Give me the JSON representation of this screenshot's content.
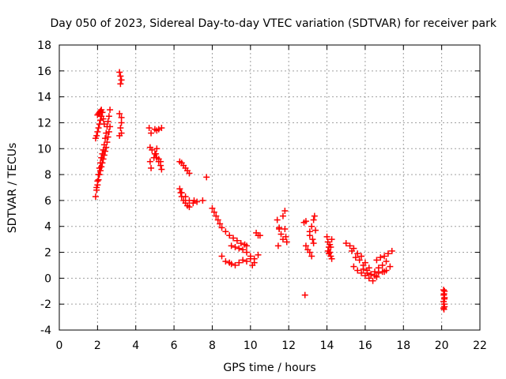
{
  "chart_data": {
    "type": "scatter",
    "title": "Day 050 of 2023, Sidereal Day-to-day VTEC variation (SDTVAR) for receiver park",
    "xlabel": "GPS time / hours",
    "ylabel": "SDTVAR / TECUs",
    "xlim": [
      0,
      22
    ],
    "ylim": [
      -4,
      18
    ],
    "xticks": [
      0,
      2,
      4,
      6,
      8,
      10,
      12,
      14,
      16,
      18,
      20,
      22
    ],
    "yticks": [
      -4,
      -2,
      0,
      2,
      4,
      6,
      8,
      10,
      12,
      14,
      16,
      18
    ],
    "xtick_labels": [
      "0",
      "2",
      "4",
      "6",
      "8",
      "10",
      "12",
      "14",
      "16",
      "18",
      "20",
      "22"
    ],
    "ytick_labels": [
      "-4",
      "-2",
      "0",
      "2",
      "4",
      "6",
      "8",
      "10",
      "12",
      "14",
      "16",
      "18"
    ],
    "grid": true,
    "marker": "+",
    "marker_color": "#ff0000",
    "series": [
      {
        "name": "SDTVAR",
        "x": [
          1.9,
          1.95,
          2.0,
          2.05,
          2.1,
          2.15,
          2.2,
          2.25,
          2.3,
          2.35,
          2.4,
          2.45,
          2.5,
          2.55,
          2.6,
          2.65,
          1.95,
          2.0,
          2.05,
          2.1,
          2.15,
          2.2,
          2.25,
          2.3,
          2.35,
          2.4,
          2.45,
          2.5,
          2.55,
          2.6,
          2.65,
          1.9,
          1.95,
          2.0,
          2.05,
          2.1,
          2.15,
          2.2,
          2.25,
          2.3,
          2.35,
          2.0,
          2.05,
          2.1,
          2.15,
          2.2,
          2.25,
          3.15,
          3.2,
          3.25,
          3.15,
          3.25,
          3.2,
          3.25,
          3.15,
          3.25,
          3.2,
          4.7,
          4.75,
          4.85,
          5.0,
          5.1,
          5.2,
          5.3,
          5.35,
          4.75,
          4.8,
          4.95,
          5.05,
          5.1,
          5.2,
          5.3,
          4.8,
          5.0,
          5.1,
          5.2,
          5.35,
          6.3,
          6.35,
          6.4,
          6.5,
          6.6,
          6.7,
          6.8,
          7.05,
          6.3,
          6.4,
          6.5,
          6.6,
          6.7,
          6.8,
          6.4,
          6.6,
          6.8,
          7.0,
          7.2,
          7.5,
          7.7,
          8.0,
          8.1,
          8.2,
          8.3,
          8.4,
          8.5,
          8.7,
          8.9,
          9.1,
          9.3,
          9.5,
          9.7,
          9.8,
          8.5,
          8.7,
          8.9,
          9.0,
          9.2,
          9.4,
          9.6,
          9.8,
          10.0,
          10.1,
          10.2,
          10.3,
          10.4,
          10.5,
          9.0,
          9.2,
          9.4,
          9.6,
          9.8,
          10.0,
          10.2,
          10.4,
          11.4,
          11.5,
          11.6,
          11.7,
          11.8,
          11.85,
          11.5,
          11.7,
          11.9,
          11.45,
          11.8,
          12.8,
          12.9,
          13.0,
          13.1,
          13.2,
          13.3,
          13.35,
          13.1,
          13.2,
          13.3,
          12.9,
          13.1,
          13.25,
          13.4,
          14.0,
          14.05,
          14.1,
          14.15,
          14.2,
          14.25,
          14.05,
          14.15,
          14.25,
          14.1,
          14.2,
          15.0,
          15.2,
          15.4,
          15.6,
          15.8,
          16.0,
          15.3,
          15.5,
          15.7,
          15.9,
          16.1,
          16.3,
          15.4,
          15.6,
          15.8,
          16.0,
          16.2,
          16.4,
          15.9,
          16.1,
          16.3,
          16.5,
          16.7,
          16.9,
          17.1,
          16.5,
          16.7,
          16.9,
          17.1,
          17.3,
          16.6,
          16.8,
          17.0,
          17.2,
          17.4,
          16.2,
          16.6,
          17.0,
          20.1,
          20.12,
          20.15,
          20.1,
          20.13,
          20.15,
          20.1,
          20.12,
          20.14,
          20.11,
          20.15
        ],
        "y": [
          6.3,
          6.8,
          7.2,
          7.6,
          8.0,
          8.3,
          8.6,
          8.9,
          9.2,
          9.5,
          9.8,
          10.1,
          10.5,
          10.9,
          11.3,
          11.7,
          7.0,
          7.5,
          8.0,
          8.5,
          8.9,
          9.3,
          9.6,
          9.9,
          10.3,
          10.8,
          11.2,
          11.7,
          12.1,
          12.5,
          13.0,
          10.8,
          11.0,
          11.3,
          11.6,
          11.9,
          12.2,
          12.5,
          12.8,
          12.3,
          11.9,
          12.6,
          12.7,
          12.8,
          12.9,
          13.0,
          12.8,
          15.9,
          15.6,
          15.3,
          12.7,
          12.4,
          11.6,
          11.2,
          11.0,
          12.0,
          15.0,
          11.6,
          10.1,
          9.9,
          9.6,
          9.3,
          9.0,
          8.7,
          8.4,
          9.0,
          8.5,
          9.3,
          9.6,
          10.0,
          9.2,
          9.0,
          11.2,
          11.5,
          11.4,
          11.5,
          11.6,
          6.9,
          6.6,
          6.3,
          6.0,
          5.8,
          5.6,
          5.5,
          6.0,
          9.0,
          8.9,
          8.7,
          8.5,
          8.3,
          8.1,
          6.6,
          6.3,
          6.0,
          5.8,
          5.9,
          6.0,
          7.8,
          5.4,
          5.1,
          4.8,
          4.5,
          4.2,
          3.9,
          3.6,
          3.3,
          3.1,
          2.9,
          2.7,
          2.6,
          2.5,
          1.7,
          1.3,
          1.2,
          1.1,
          1.0,
          1.2,
          1.4,
          1.3,
          1.5,
          1.0,
          1.2,
          3.5,
          3.3,
          3.3,
          2.5,
          2.4,
          2.3,
          2.2,
          2.0,
          1.7,
          1.5,
          1.8,
          4.5,
          3.8,
          3.4,
          4.8,
          5.2,
          3.2,
          3.9,
          3.0,
          2.8,
          2.5,
          3.8,
          4.3,
          2.5,
          2.2,
          3.6,
          4.0,
          4.5,
          4.8,
          2.0,
          1.7,
          2.7,
          4.4,
          3.3,
          3.0,
          3.7,
          3.2,
          2.8,
          2.4,
          2.0,
          1.7,
          1.5,
          2.1,
          2.6,
          3.0,
          1.9,
          2.4,
          2.7,
          2.5,
          2.3,
          1.9,
          1.7,
          1.2,
          2.1,
          1.6,
          1.4,
          1.0,
          0.6,
          0.3,
          0.9,
          0.6,
          0.4,
          0.2,
          0.0,
          -0.2,
          0.7,
          0.4,
          0.3,
          0.5,
          0.8,
          1.0,
          1.3,
          0.2,
          0.4,
          0.5,
          0.6,
          0.9,
          1.4,
          1.6,
          1.7,
          1.9,
          2.1,
          0.8,
          0.1,
          0.5,
          -0.9,
          -1.2,
          -1.5,
          -1.8,
          -2.0,
          -2.2,
          -2.3,
          -2.4,
          -1.6,
          -1.3,
          -1.0
        ],
        "outliers": {
          "x": [
            12.85
          ],
          "y": [
            -1.3
          ]
        }
      }
    ]
  }
}
